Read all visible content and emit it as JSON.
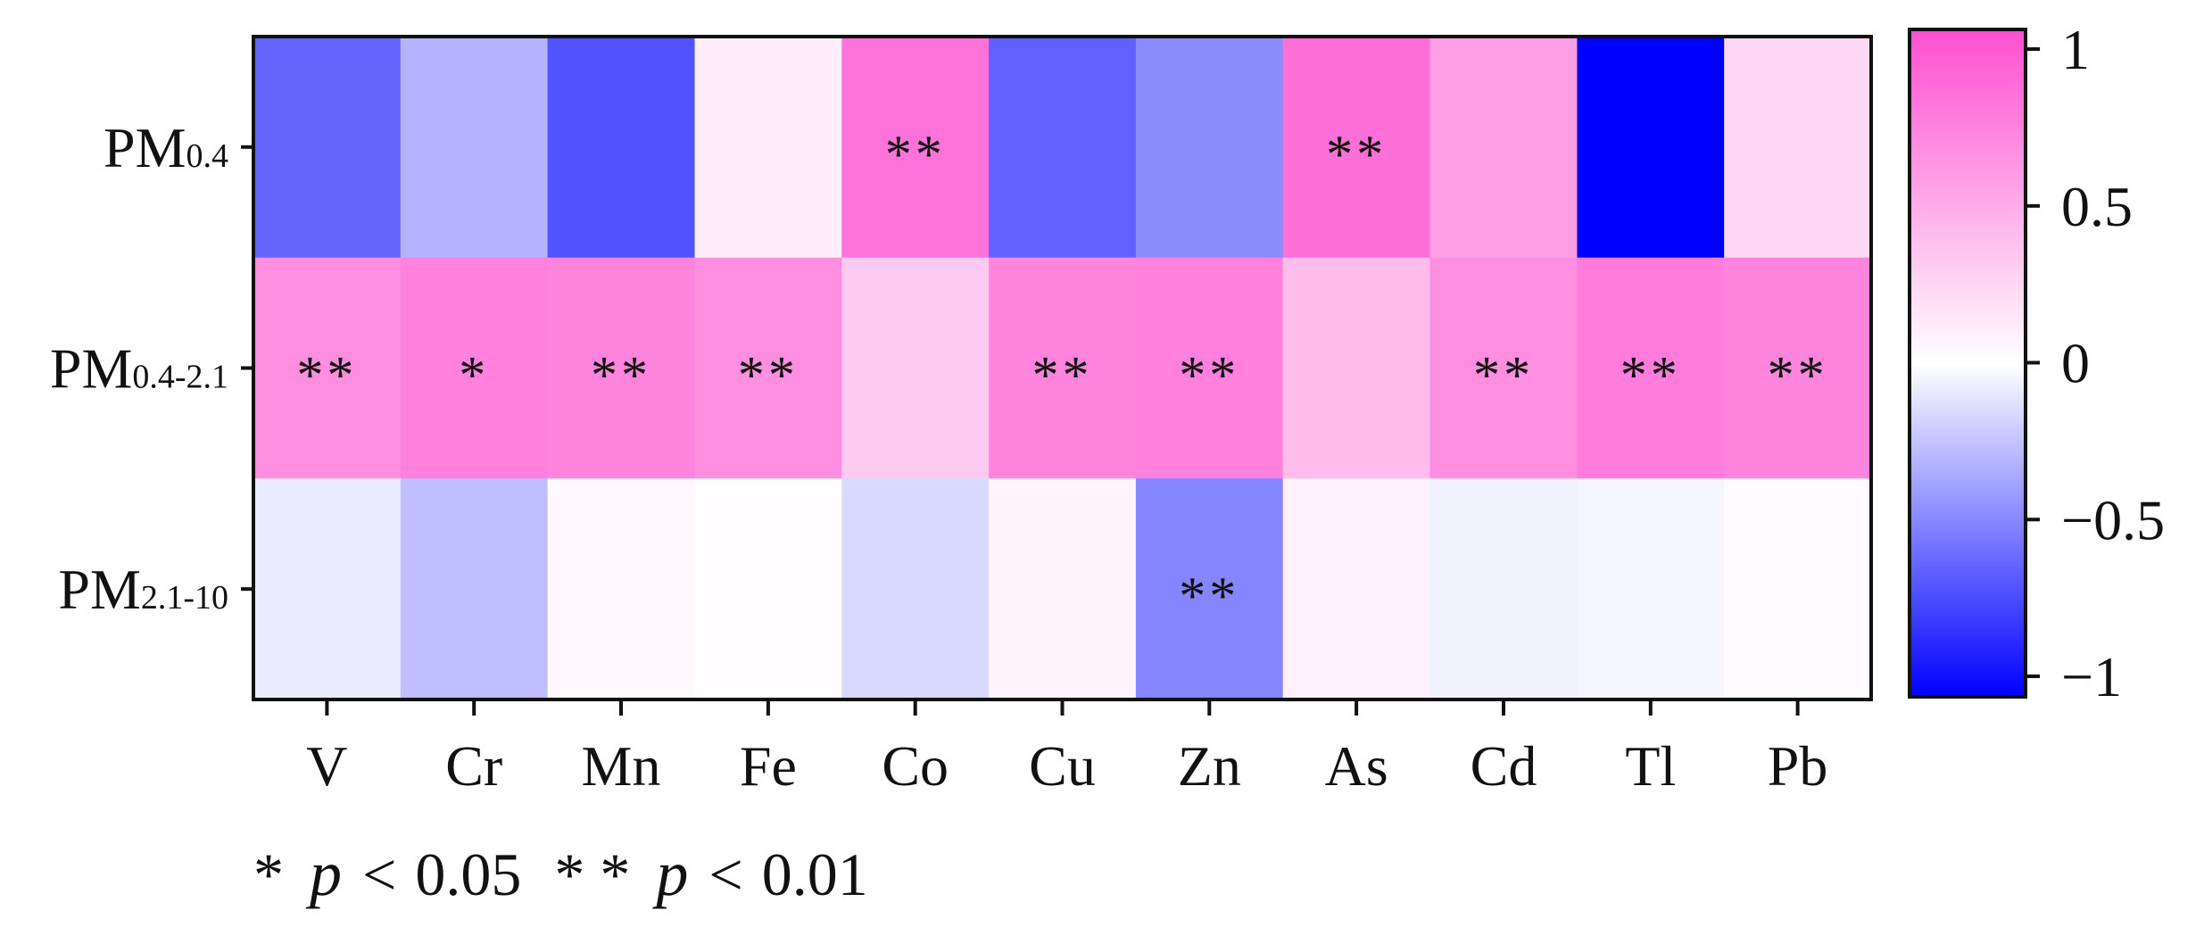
{
  "chart_data": {
    "type": "heatmap",
    "rows": [
      {
        "main": "PM",
        "sub": "0.4"
      },
      {
        "main": "PM",
        "sub": "0.4-2.1"
      },
      {
        "main": "PM",
        "sub": "2.1-10"
      }
    ],
    "columns": [
      "V",
      "Cr",
      "Mn",
      "Fe",
      "Co",
      "Cu",
      "Zn",
      "As",
      "Cd",
      "Tl",
      "Pb"
    ],
    "values": [
      [
        -0.6,
        -0.3,
        -0.68,
        0.1,
        0.8,
        -0.62,
        -0.45,
        0.82,
        0.55,
        -1.0,
        0.22
      ],
      [
        0.65,
        0.72,
        0.7,
        0.65,
        0.3,
        0.7,
        0.72,
        0.38,
        0.65,
        0.75,
        0.7
      ],
      [
        -0.08,
        -0.25,
        0.04,
        0.01,
        -0.15,
        0.06,
        -0.48,
        0.08,
        -0.05,
        -0.04,
        0.02
      ]
    ],
    "significance": [
      [
        "",
        "",
        "",
        "",
        "**",
        "",
        "",
        "**",
        "",
        "",
        ""
      ],
      [
        "**",
        "*",
        "**",
        "**",
        "",
        "**",
        "**",
        "",
        "**",
        "**",
        "**"
      ],
      [
        "",
        "",
        "",
        "",
        "",
        "",
        "**",
        "",
        "",
        "",
        ""
      ]
    ],
    "colorbar": {
      "range": [
        -1,
        1
      ],
      "ticks": [
        1,
        0.5,
        0,
        -0.5,
        -1
      ],
      "tick_labels": [
        "1",
        "0.5",
        "0",
        "−0.5",
        "−1"
      ],
      "colors": {
        "low": "#0000ff",
        "mid": "#ffffff",
        "high": "#ff4fd0"
      }
    },
    "footnote": {
      "single_star": "*",
      "double_star": "* *",
      "p_symbol": "p",
      "less_than": "<",
      "threshold_05": "0.05",
      "threshold_01": "0.01"
    }
  }
}
